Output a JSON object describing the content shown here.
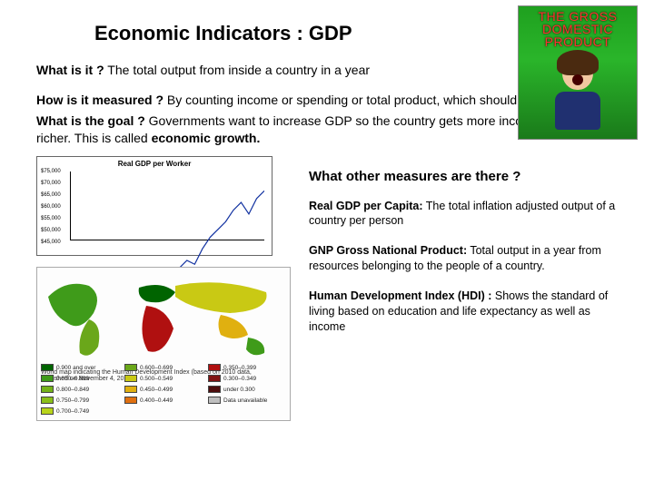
{
  "title": "Economic Indicators : GDP",
  "corner": {
    "banner_line1": "THE GROSS",
    "banner_line2": "DOMESTIC",
    "banner_line3": "PRODUCT"
  },
  "q1": {
    "label": "What is it ?",
    "text": " The total output from inside a country in a year"
  },
  "q2": {
    "label": "How is it measured ?",
    "text": "  By counting income or spending or total product, which should all be equal."
  },
  "q3": {
    "label": "What is the goal ?",
    "text_a": "   Governments want to increase GDP so the country gets more income and gets richer.  This is called ",
    "bold_tail": "economic growth."
  },
  "chart": {
    "title": "Real GDP per Worker",
    "line_color": "#1030a0",
    "axis_color": "#000000",
    "background": "#ffffff",
    "yticks": [
      "$75,000",
      "$70,000",
      "$65,000",
      "$60,000",
      "$55,000",
      "$50,000",
      "$45,000"
    ],
    "series": [
      [
        0,
        0.8
      ],
      [
        0.04,
        0.78
      ],
      [
        0.08,
        0.82
      ],
      [
        0.12,
        0.8
      ],
      [
        0.16,
        0.78
      ],
      [
        0.2,
        0.82
      ],
      [
        0.24,
        0.76
      ],
      [
        0.28,
        0.74
      ],
      [
        0.32,
        0.76
      ],
      [
        0.36,
        0.72
      ],
      [
        0.4,
        0.7
      ],
      [
        0.44,
        0.66
      ],
      [
        0.48,
        0.6
      ],
      [
        0.52,
        0.56
      ],
      [
        0.56,
        0.5
      ],
      [
        0.6,
        0.46
      ],
      [
        0.64,
        0.48
      ],
      [
        0.68,
        0.4
      ],
      [
        0.72,
        0.34
      ],
      [
        0.76,
        0.3
      ],
      [
        0.8,
        0.26
      ],
      [
        0.84,
        0.2
      ],
      [
        0.88,
        0.16
      ],
      [
        0.92,
        0.22
      ],
      [
        0.96,
        0.14
      ],
      [
        1.0,
        0.1
      ]
    ]
  },
  "map": {
    "caption_line1": "World map indicating the Human Development Index (based on 2010 data,",
    "caption_line2": "published on November 4, 2010)",
    "legend": [
      {
        "color": "#006400",
        "label": "0.900 and over"
      },
      {
        "color": "#6aa71a",
        "label": "0.600–0.699"
      },
      {
        "color": "#b01010",
        "label": "0.350–0.399"
      },
      {
        "color": "#3f9b1a",
        "label": "0.850–0.899"
      },
      {
        "color": "#c9c914",
        "label": "0.500–0.549"
      },
      {
        "color": "#801212",
        "label": "0.300–0.349"
      },
      {
        "color": "#74b21a",
        "label": "0.800–0.849"
      },
      {
        "color": "#e0b010",
        "label": "0.450–0.499"
      },
      {
        "color": "#4d0d0d",
        "label": "under 0.300"
      },
      {
        "color": "#8abf1a",
        "label": "0.750–0.799"
      },
      {
        "color": "#e07010",
        "label": "0.400–0.449"
      },
      {
        "color": "#bfbfbf",
        "label": "Data unavailable"
      },
      {
        "color": "#b8d41a",
        "label": "0.700–0.749"
      }
    ]
  },
  "subhead": "What other measures are there ?",
  "measures": [
    {
      "label": "Real GDP per Capita:",
      "text": " The total inflation adjusted output of a country per person"
    },
    {
      "label": "GNP Gross National Product:",
      "text": " Total output in a year from resources belonging to the people of a country."
    },
    {
      "label": "Human Development Index (HDI) :",
      "text": " Shows the standard of living based on education and life expectancy as well as income"
    }
  ],
  "colors": {
    "page_bg": "#ffffff",
    "text": "#000000"
  }
}
